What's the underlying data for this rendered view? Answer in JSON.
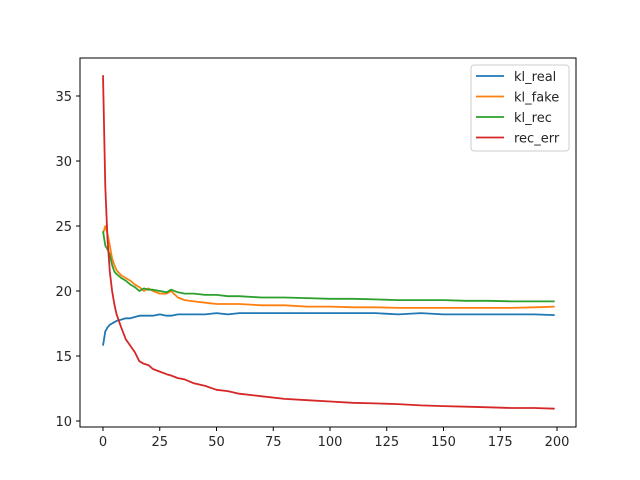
{
  "chart_data": {
    "type": "line",
    "title": "",
    "xlabel": "",
    "ylabel": "",
    "xlim": [
      -10,
      210
    ],
    "ylim": [
      9.7,
      37.7
    ],
    "grid": false,
    "legend_position": "upper right",
    "xticks": [
      0,
      25,
      50,
      75,
      100,
      125,
      150,
      175,
      200
    ],
    "yticks": [
      10,
      15,
      20,
      25,
      30,
      35
    ],
    "x": [
      0,
      1,
      2,
      3,
      4,
      5,
      6,
      8,
      10,
      12,
      14,
      16,
      18,
      20,
      22,
      25,
      28,
      30,
      33,
      36,
      40,
      45,
      50,
      55,
      60,
      70,
      80,
      90,
      100,
      110,
      120,
      130,
      140,
      150,
      160,
      170,
      180,
      190,
      199
    ],
    "series": [
      {
        "name": "kl_real",
        "color": "#1f77b4",
        "values": [
          15.8,
          16.9,
          17.2,
          17.4,
          17.5,
          17.6,
          17.7,
          17.8,
          17.9,
          17.9,
          18.0,
          18.1,
          18.1,
          18.1,
          18.1,
          18.2,
          18.1,
          18.1,
          18.2,
          18.2,
          18.2,
          18.2,
          18.3,
          18.2,
          18.3,
          18.3,
          18.3,
          18.3,
          18.3,
          18.3,
          18.3,
          18.2,
          18.3,
          18.2,
          18.2,
          18.2,
          18.2,
          18.2,
          18.15
        ]
      },
      {
        "name": "kl_fake",
        "color": "#ff7f0e",
        "values": [
          24.4,
          25.0,
          24.4,
          23.5,
          22.5,
          22.0,
          21.6,
          21.2,
          21.0,
          20.8,
          20.5,
          20.3,
          20.0,
          20.2,
          20.0,
          19.8,
          19.8,
          20.0,
          19.5,
          19.3,
          19.2,
          19.1,
          19.0,
          19.0,
          19.0,
          18.9,
          18.9,
          18.8,
          18.8,
          18.75,
          18.75,
          18.7,
          18.7,
          18.7,
          18.7,
          18.7,
          18.7,
          18.75,
          18.8
        ]
      },
      {
        "name": "kl_rec",
        "color": "#2ca02c",
        "values": [
          24.6,
          23.5,
          23.2,
          22.8,
          22.0,
          21.5,
          21.3,
          21.0,
          20.8,
          20.5,
          20.3,
          20.0,
          20.2,
          20.1,
          20.1,
          20.0,
          19.9,
          20.1,
          19.9,
          19.8,
          19.8,
          19.7,
          19.7,
          19.6,
          19.6,
          19.5,
          19.5,
          19.45,
          19.4,
          19.4,
          19.35,
          19.3,
          19.3,
          19.3,
          19.25,
          19.25,
          19.2,
          19.2,
          19.2
        ]
      },
      {
        "name": "rec_err",
        "color": "#d62728",
        "values": [
          36.6,
          28.0,
          24.0,
          21.5,
          20.0,
          19.0,
          18.2,
          17.2,
          16.3,
          15.8,
          15.3,
          14.6,
          14.4,
          14.3,
          14.0,
          13.8,
          13.6,
          13.5,
          13.3,
          13.2,
          12.9,
          12.7,
          12.4,
          12.3,
          12.1,
          11.9,
          11.7,
          11.6,
          11.5,
          11.4,
          11.35,
          11.3,
          11.2,
          11.15,
          11.1,
          11.05,
          11.0,
          11.0,
          10.95
        ]
      }
    ]
  }
}
